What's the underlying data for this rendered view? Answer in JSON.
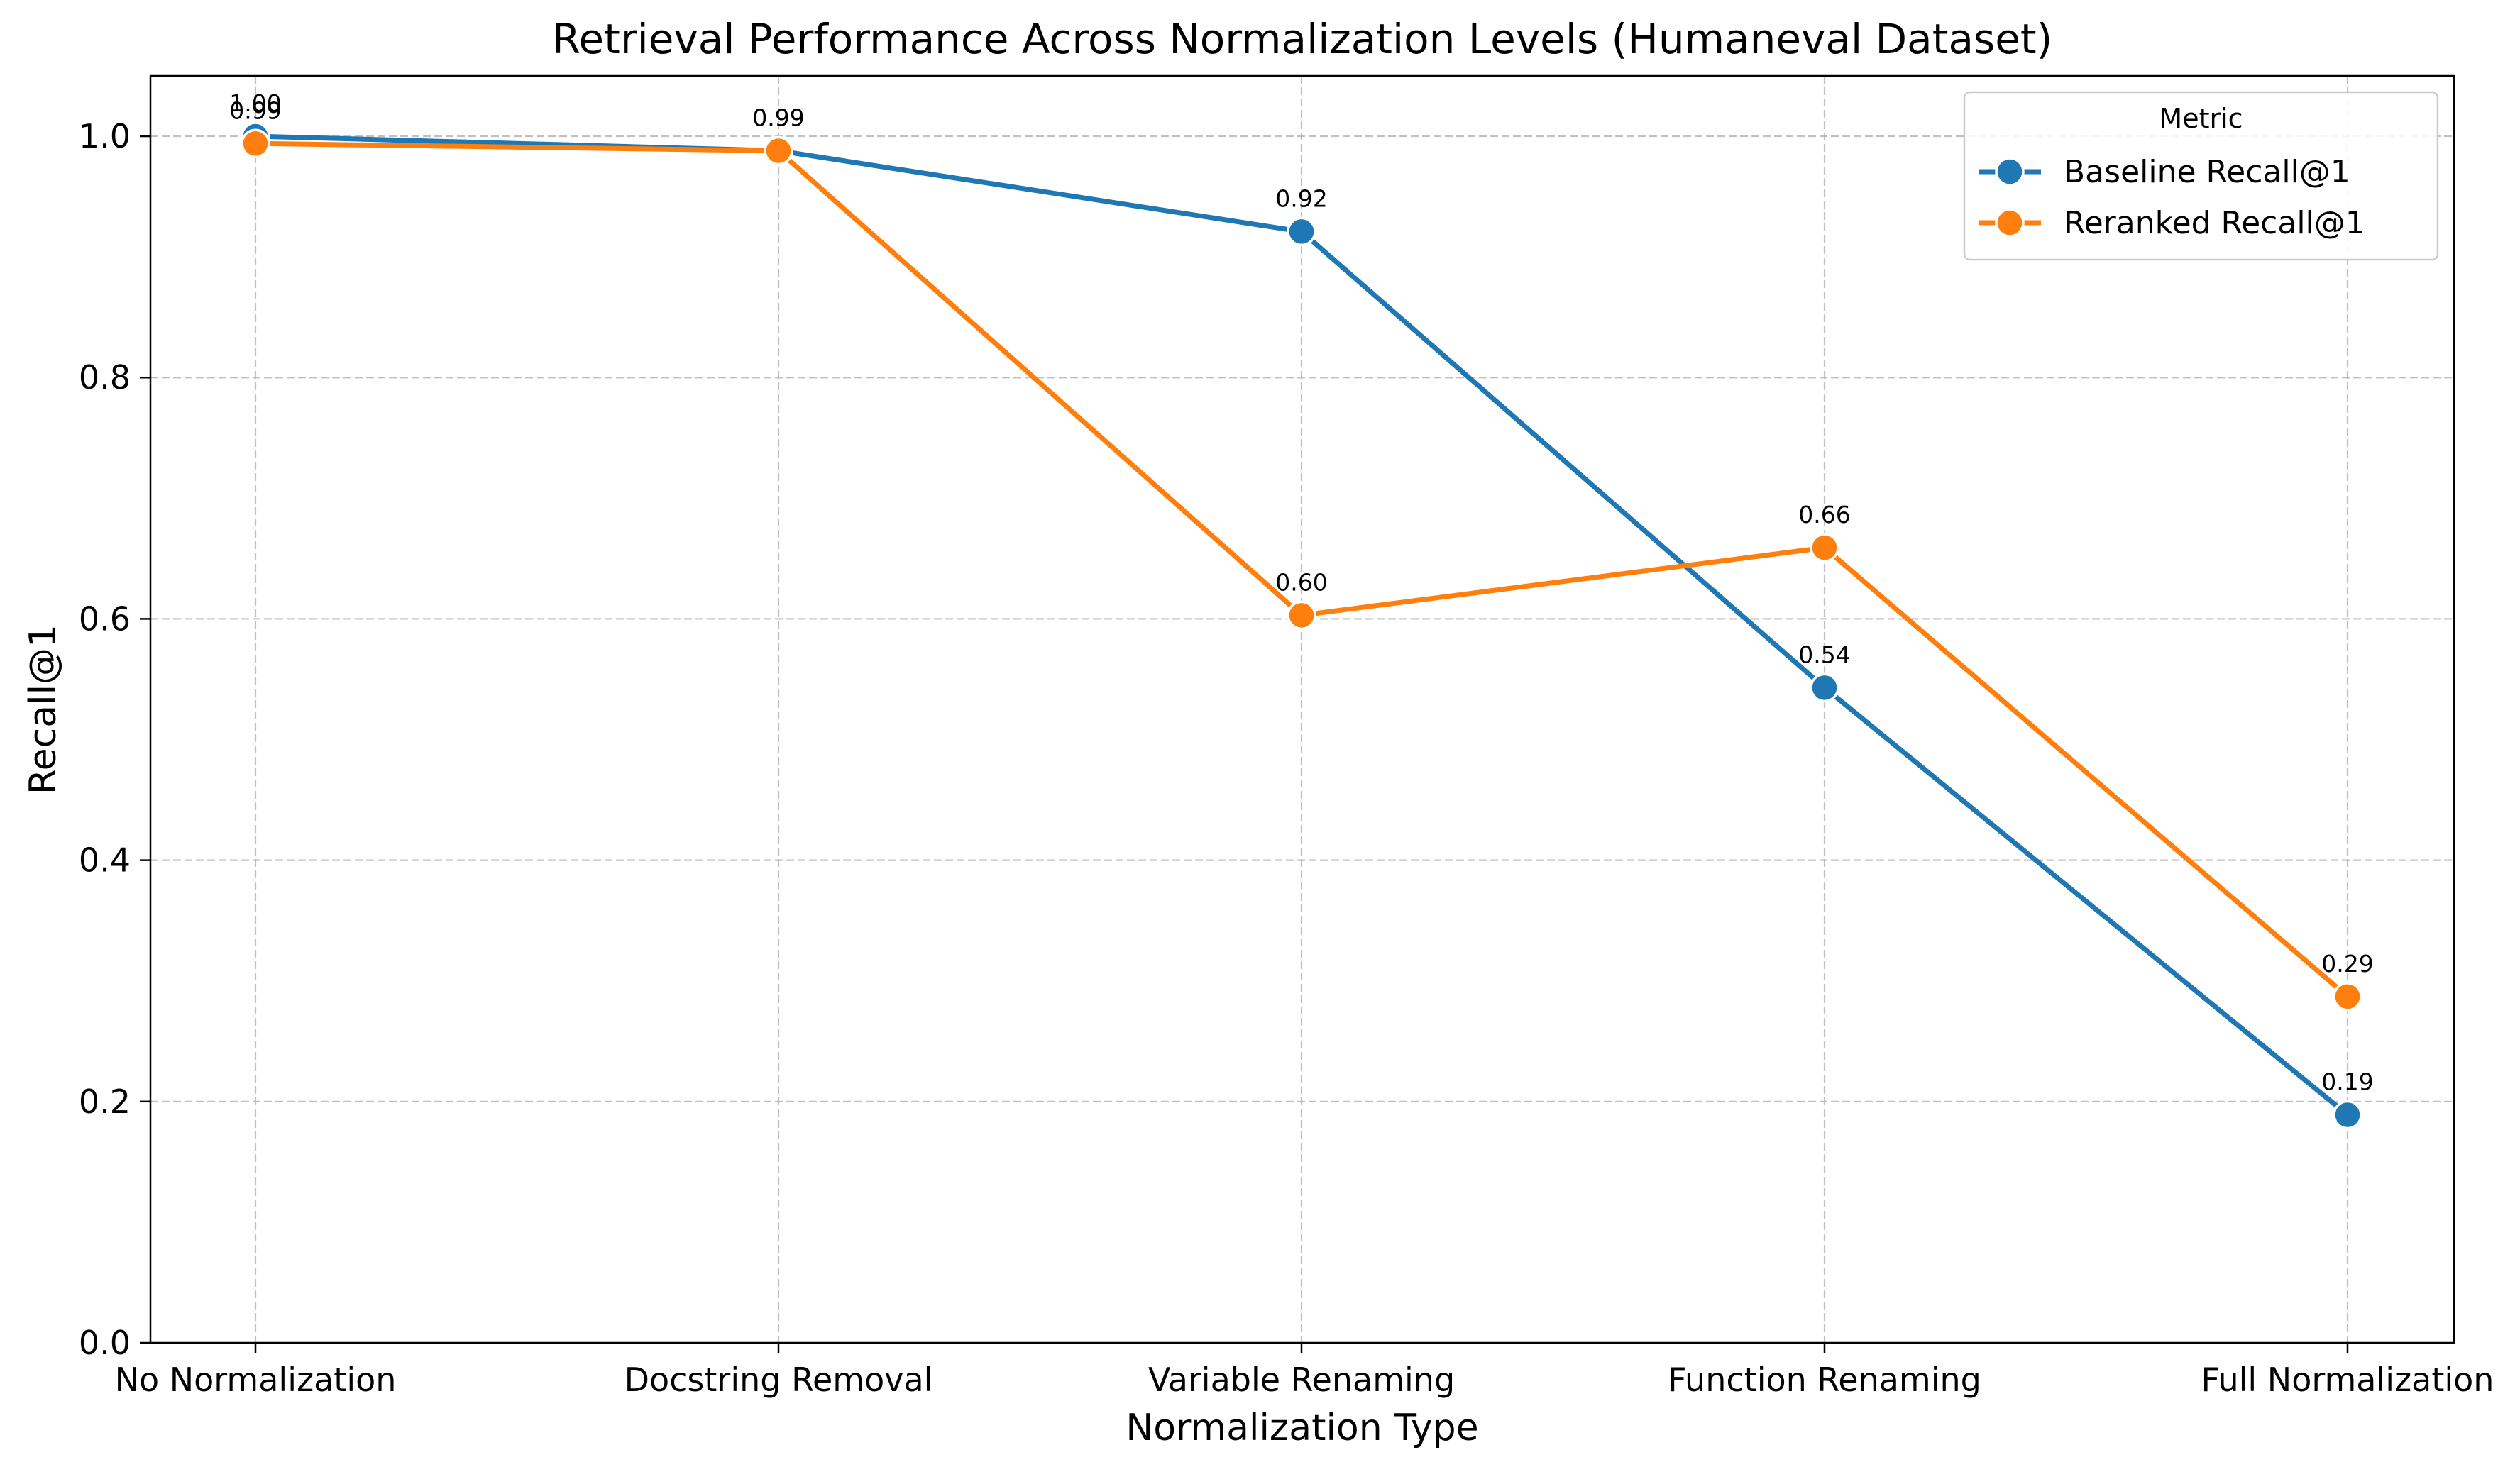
{
  "chart_data": {
    "type": "line",
    "title": "Retrieval Performance Across Normalization Levels (Humaneval Dataset)",
    "xlabel": "Normalization Type",
    "ylabel": "Recall@1",
    "categories": [
      "No Normalization",
      "Docstring Removal",
      "Variable Renaming",
      "Function Renaming",
      "Full Normalization"
    ],
    "ylim": [
      0,
      1.05
    ],
    "yticks": [
      0.0,
      0.2,
      0.4,
      0.6,
      0.8,
      1.0
    ],
    "ytick_labels": [
      "0.0",
      "0.2",
      "0.4",
      "0.6",
      "0.8",
      "1.0"
    ],
    "grid": true,
    "legend": {
      "title": "Metric",
      "placement": "top-right"
    },
    "series": [
      {
        "name": "Baseline Recall@1",
        "color": "#1f77b4",
        "values": [
          1.0,
          0.988,
          0.921,
          0.543,
          0.189
        ],
        "labels": [
          "1.00",
          "0.99",
          "0.92",
          "0.54",
          "0.19"
        ]
      },
      {
        "name": "Reranked Recall@1",
        "color": "#ff7f0e",
        "values": [
          0.994,
          0.988,
          0.603,
          0.659,
          0.287
        ],
        "labels": [
          "0.99",
          "0.99",
          "0.60",
          "0.66",
          "0.29"
        ]
      }
    ]
  }
}
